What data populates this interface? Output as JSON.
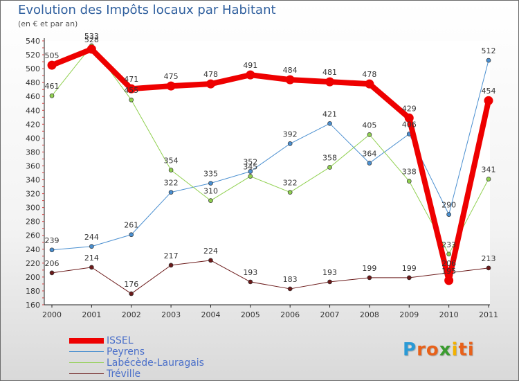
{
  "title": "Evolution des Impôts locaux par Habitant",
  "subtitle": "(en € et par an)",
  "logo": {
    "letters": [
      "P",
      "r",
      "o",
      "x",
      "i",
      "t",
      "i"
    ],
    "colors": [
      "#2a9ad6",
      "#e8611a",
      "#e8611a",
      "#3a9c2f",
      "#f3b200",
      "#e8611a",
      "#e8611a"
    ]
  },
  "chart_data": {
    "type": "line",
    "title": "Evolution des Impôts locaux par Habitant",
    "subtitle": "(en € et par an)",
    "x": [
      "2000",
      "2001",
      "2002",
      "2003",
      "2004",
      "2005",
      "2006",
      "2007",
      "2008",
      "2009",
      "2010",
      "2011"
    ],
    "ylim": [
      160,
      540
    ],
    "yticks": [
      160,
      180,
      200,
      220,
      240,
      260,
      280,
      300,
      320,
      340,
      360,
      380,
      400,
      420,
      440,
      460,
      480,
      500,
      520,
      540
    ],
    "grid": false,
    "legend_position": "bottom-left",
    "series": [
      {
        "name": "ISSEL",
        "color": "#ee0000",
        "bold": true,
        "values": [
          505,
          528,
          471,
          475,
          478,
          491,
          484,
          481,
          478,
          429,
          195,
          454
        ],
        "labels": [
          "505",
          "528",
          "471",
          "475",
          "478",
          "491",
          "484",
          "481",
          "478",
          "429",
          "195",
          "454"
        ]
      },
      {
        "name": "Peyrens",
        "color": "#4a8fd0",
        "bold": false,
        "values": [
          239,
          244,
          261,
          322,
          335,
          352,
          392,
          421,
          364,
          406,
          290,
          512
        ],
        "labels": [
          "239",
          "244",
          "261",
          "322",
          "335",
          "352",
          "392",
          "421",
          "364",
          "406",
          "290",
          "512"
        ]
      },
      {
        "name": "Labécède-Lauragais",
        "color": "#90d050",
        "bold": false,
        "values": [
          461,
          533,
          455,
          354,
          310,
          345,
          322,
          358,
          405,
          338,
          233,
          341
        ],
        "labels": [
          "461",
          "533",
          "455",
          "354",
          "310",
          "345",
          "322",
          "358",
          "405",
          "338",
          "233",
          "341"
        ]
      },
      {
        "name": "Tréville",
        "color": "#6b1a1a",
        "bold": false,
        "values": [
          206,
          214,
          176,
          217,
          224,
          193,
          183,
          193,
          199,
          199,
          206,
          213
        ],
        "labels": [
          "206",
          "214",
          "176",
          "217",
          "224",
          "193",
          "183",
          "193",
          "199",
          "199",
          "206",
          "213"
        ]
      }
    ]
  }
}
